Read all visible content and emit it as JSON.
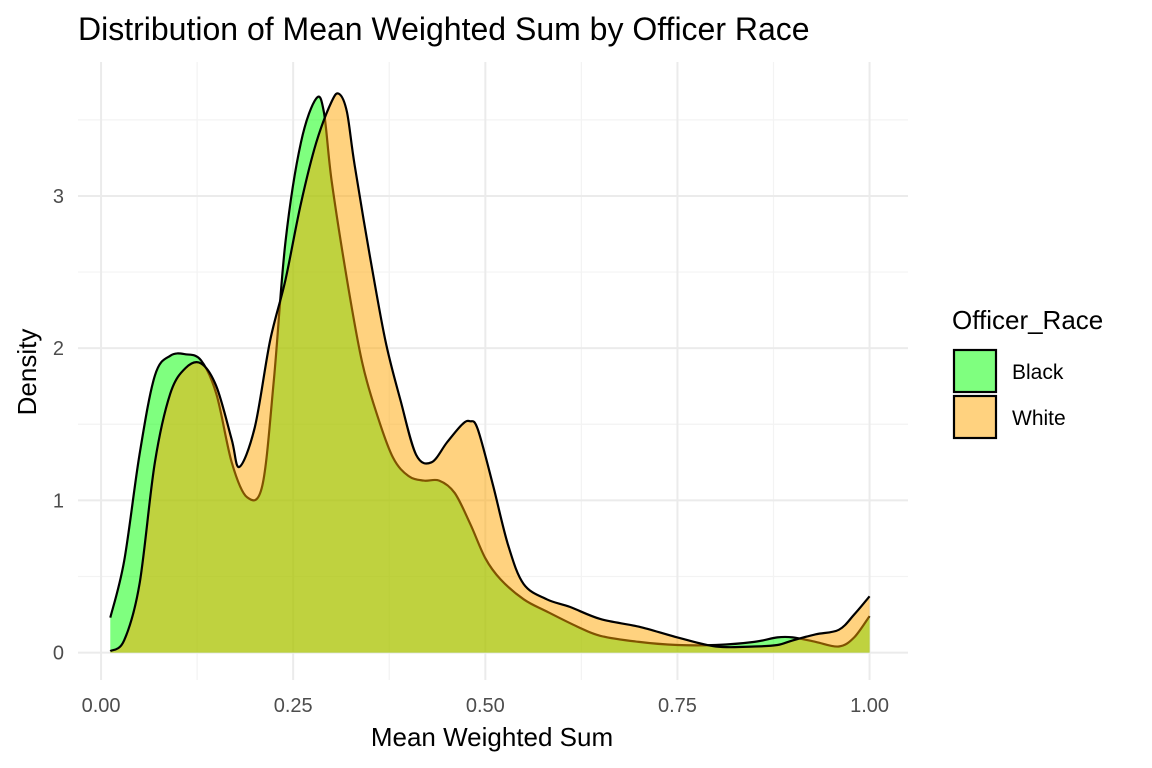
{
  "chart_data": {
    "type": "area",
    "subtype": "density",
    "title": "Distribution of Mean Weighted Sum by Officer Race",
    "xlabel": "Mean Weighted Sum",
    "ylabel": "Density",
    "xlim": [
      -0.03,
      1.05
    ],
    "ylim": [
      -0.18,
      3.88
    ],
    "x_ticks": [
      0,
      0.25,
      0.5,
      0.75,
      1
    ],
    "x_tick_labels": [
      "0.00",
      "0.25",
      "0.50",
      "0.75",
      "1.00"
    ],
    "y_ticks": [
      0,
      1,
      2,
      3
    ],
    "y_tick_labels": [
      "0",
      "1",
      "2",
      "3"
    ],
    "grid": true,
    "legend": {
      "title": "Officer_Race",
      "position": "right"
    },
    "series": [
      {
        "name": "Black",
        "color": "#00ff00",
        "alpha": 0.5,
        "x": [
          0.012,
          0.03,
          0.05,
          0.07,
          0.09,
          0.11,
          0.13,
          0.15,
          0.17,
          0.19,
          0.21,
          0.225,
          0.24,
          0.26,
          0.28,
          0.29,
          0.3,
          0.32,
          0.34,
          0.36,
          0.38,
          0.4,
          0.42,
          0.44,
          0.46,
          0.48,
          0.5,
          0.52,
          0.55,
          0.58,
          0.62,
          0.65,
          0.7,
          0.75,
          0.8,
          0.85,
          0.88,
          0.9,
          0.93,
          0.96,
          0.98,
          1.0
        ],
        "y": [
          0.23,
          0.6,
          1.3,
          1.82,
          1.95,
          1.96,
          1.92,
          1.7,
          1.25,
          1.02,
          1.1,
          1.8,
          2.7,
          3.35,
          3.64,
          3.55,
          3.1,
          2.45,
          1.9,
          1.55,
          1.28,
          1.16,
          1.13,
          1.13,
          1.05,
          0.85,
          0.62,
          0.48,
          0.35,
          0.27,
          0.17,
          0.11,
          0.07,
          0.05,
          0.05,
          0.07,
          0.1,
          0.1,
          0.07,
          0.04,
          0.1,
          0.24
        ]
      },
      {
        "name": "White",
        "color": "#ffa500",
        "alpha": 0.5,
        "x": [
          0.012,
          0.03,
          0.05,
          0.07,
          0.09,
          0.11,
          0.13,
          0.15,
          0.17,
          0.18,
          0.2,
          0.22,
          0.24,
          0.26,
          0.28,
          0.3,
          0.31,
          0.32,
          0.33,
          0.35,
          0.37,
          0.39,
          0.41,
          0.43,
          0.45,
          0.47,
          0.48,
          0.49,
          0.51,
          0.53,
          0.55,
          0.58,
          0.61,
          0.65,
          0.7,
          0.75,
          0.8,
          0.85,
          0.88,
          0.9,
          0.93,
          0.96,
          0.98,
          1.0
        ],
        "y": [
          0.01,
          0.08,
          0.45,
          1.25,
          1.7,
          1.87,
          1.9,
          1.75,
          1.4,
          1.22,
          1.48,
          2.05,
          2.45,
          2.95,
          3.35,
          3.62,
          3.67,
          3.55,
          3.2,
          2.6,
          2.05,
          1.65,
          1.3,
          1.25,
          1.38,
          1.5,
          1.52,
          1.47,
          1.1,
          0.7,
          0.45,
          0.35,
          0.3,
          0.22,
          0.17,
          0.1,
          0.04,
          0.04,
          0.05,
          0.08,
          0.12,
          0.15,
          0.25,
          0.37
        ]
      }
    ]
  }
}
